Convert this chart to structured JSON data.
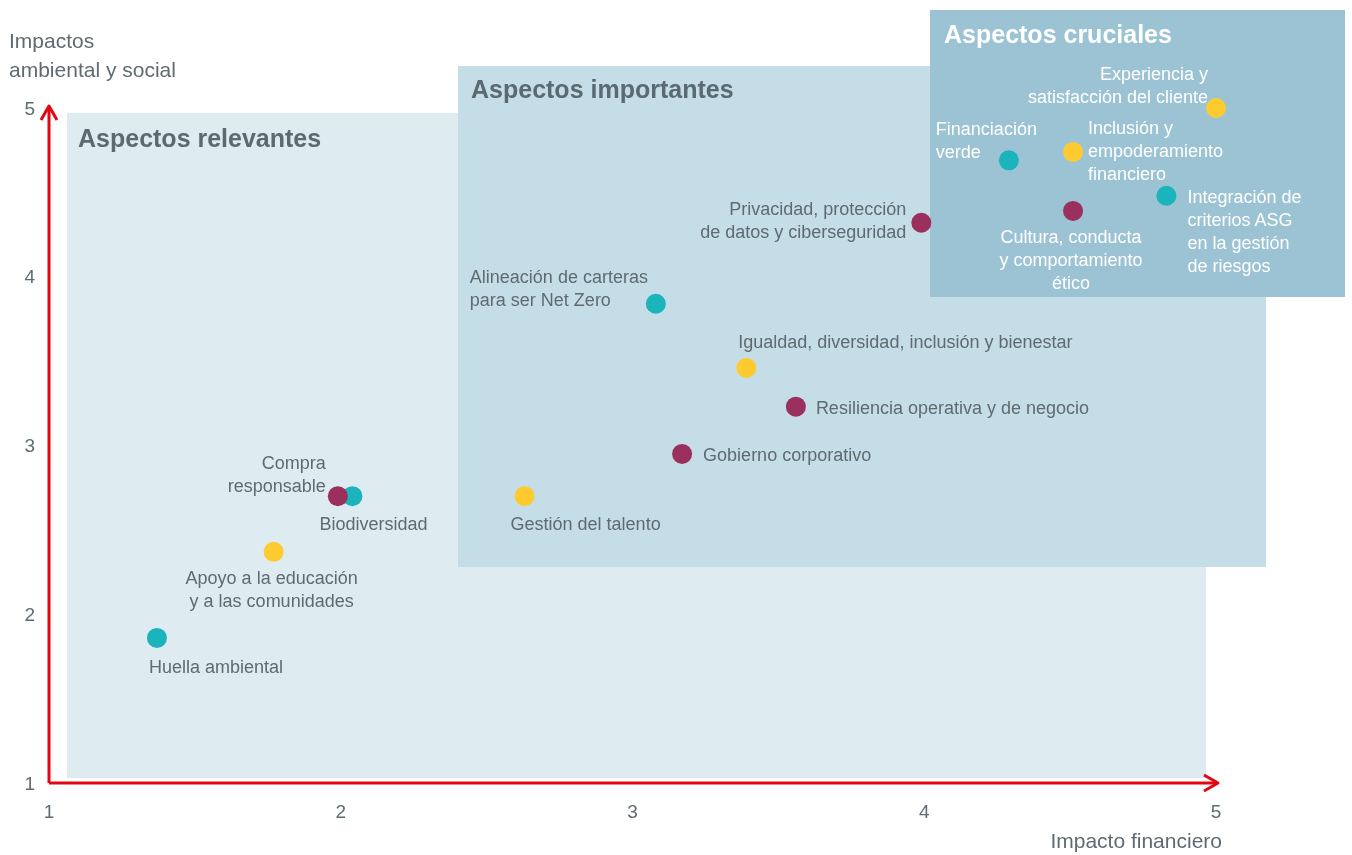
{
  "chart_data": {
    "type": "scatter",
    "xlabel": "Impacto financiero",
    "ylabel": "Impactos\nambiental y social",
    "xlim": [
      1,
      5
    ],
    "ylim": [
      1,
      5
    ],
    "xticks": [
      1,
      2,
      3,
      4,
      5
    ],
    "yticks": [
      1,
      2,
      3,
      4,
      5
    ],
    "grid": false,
    "legend": false,
    "marker": "circle",
    "series": [
      {
        "color": "#1bb3bc",
        "x": [
          1.37,
          2.04,
          3.08,
          4.29,
          4.83
        ],
        "values": [
          1.86,
          2.7,
          3.84,
          4.69,
          4.48
        ]
      },
      {
        "color": "#fdcb2f",
        "x": [
          1.77,
          2.63,
          3.39,
          4.51,
          5.0
        ],
        "values": [
          2.37,
          2.7,
          3.46,
          4.74,
          5.0
        ]
      },
      {
        "color": "#9b2f5e",
        "x": [
          1.99,
          3.17,
          3.56,
          3.99,
          4.51
        ],
        "values": [
          2.7,
          2.95,
          3.23,
          4.32,
          4.39
        ]
      }
    ],
    "annotations": [
      "Aspectos relevantes",
      "Aspectos importantes",
      "Aspectos cruciales",
      {
        "text": "Huella ambiental",
        "x": 1.37,
        "y": 1.86
      },
      {
        "text": "Apoyo a la educación\ny a las comunidades",
        "x": 1.77,
        "y": 2.37
      },
      {
        "text": "Compra\nresponsable",
        "x": 1.99,
        "y": 2.7
      },
      {
        "text": "Biodiversidad",
        "x": 2.04,
        "y": 2.7
      },
      {
        "text": "Gestión del talento",
        "x": 2.63,
        "y": 2.7
      },
      {
        "text": "Gobierno corporativo",
        "x": 3.17,
        "y": 2.95
      },
      {
        "text": "Alineación de carteras\npara ser Net Zero",
        "x": 3.08,
        "y": 3.84
      },
      {
        "text": "Igualdad, diversidad, inclusión y bienestar",
        "x": 3.39,
        "y": 3.46
      },
      {
        "text": "Resiliencia operativa y de negocio",
        "x": 3.56,
        "y": 3.23
      },
      {
        "text": "Privacidad, protección\nde datos y ciberseguridad",
        "x": 3.99,
        "y": 4.32
      },
      {
        "text": "Financiación\nverde",
        "x": 4.29,
        "y": 4.69
      },
      {
        "text": "Inclusión y\nempoderamiento\nfinanciero",
        "x": 4.51,
        "y": 4.74
      },
      {
        "text": "Cultura, conducta\ny comportamiento\nético",
        "x": 4.51,
        "y": 4.39
      },
      {
        "text": "Integración de\ncriterios ASG\nen la gestión\nde riesgos",
        "x": 4.83,
        "y": 4.48
      },
      {
        "text": "Experiencia y\nsatisfacción del cliente",
        "x": 5.0,
        "y": 5.0
      }
    ]
  }
}
